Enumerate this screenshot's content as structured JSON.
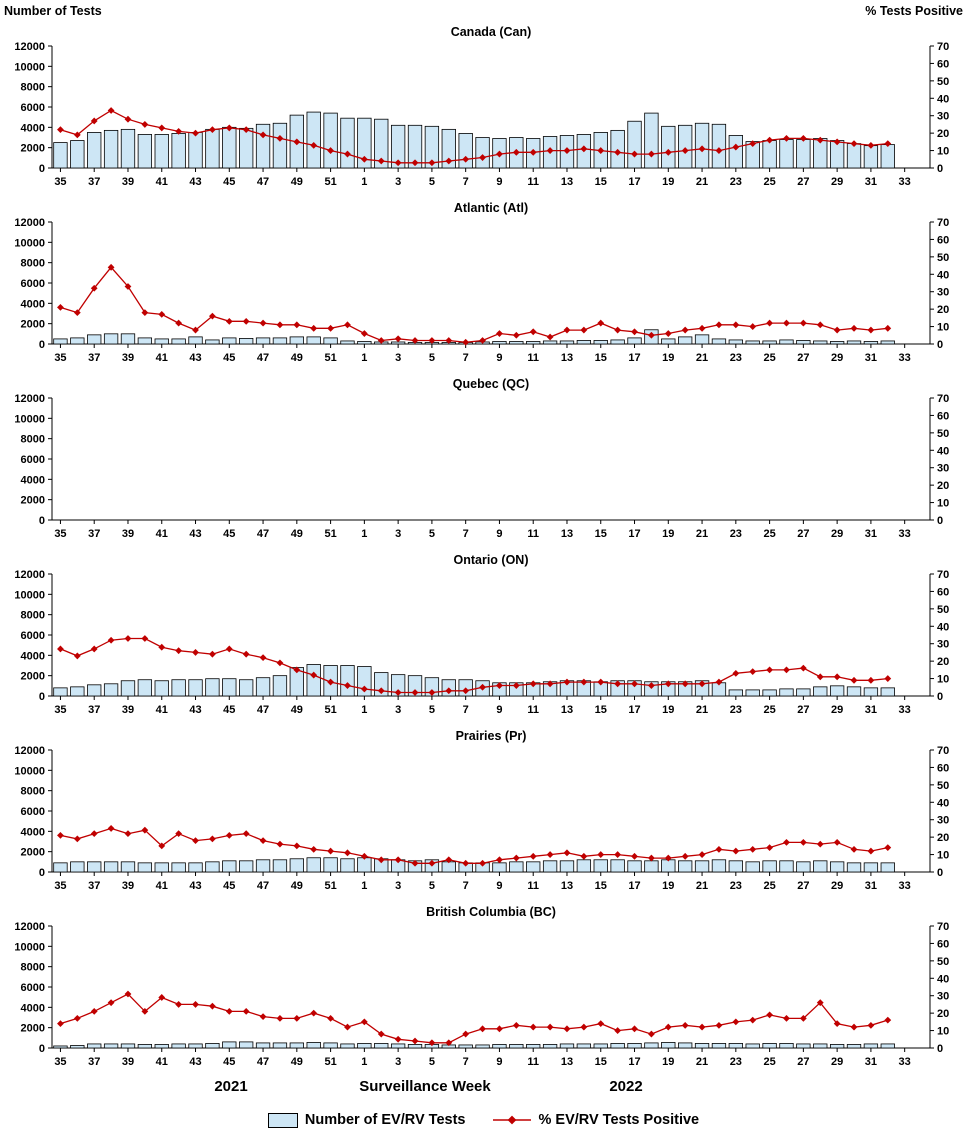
{
  "chart_data": {
    "type": "combo_bar_line_small_multiples",
    "left_axis": {
      "title": "Number of Tests",
      "min": 0,
      "max": 12000,
      "step": 2000
    },
    "right_axis": {
      "title": "% Tests Positive",
      "min": 0,
      "max": 70,
      "step": 10
    },
    "x_axis": {
      "year_left": "2021",
      "label": "Surveillance Week",
      "year_right": "2022"
    },
    "series_labels": {
      "bars": "Number of EV/RV Tests",
      "line": "% EV/RV Tests Positive"
    },
    "colors": {
      "bar_fill": "#CDE6F5",
      "bar_stroke": "#000000",
      "line": "#C00000"
    },
    "weeks": [
      "35",
      "36",
      "37",
      "38",
      "39",
      "40",
      "41",
      "42",
      "43",
      "44",
      "45",
      "46",
      "47",
      "48",
      "49",
      "50",
      "51",
      "52",
      "1",
      "2",
      "3",
      "4",
      "5",
      "6",
      "7",
      "8",
      "9",
      "10",
      "11",
      "12",
      "13",
      "14",
      "15",
      "16",
      "17",
      "18",
      "19",
      "20",
      "21",
      "22",
      "23",
      "24",
      "25",
      "26",
      "27",
      "28",
      "29",
      "30",
      "31",
      "32",
      "33"
    ],
    "x_tick_labels": [
      "35",
      "37",
      "39",
      "41",
      "43",
      "45",
      "47",
      "49",
      "51",
      "1",
      "3",
      "5",
      "7",
      "9",
      "11",
      "13",
      "15",
      "17",
      "19",
      "21",
      "23",
      "25",
      "27",
      "29",
      "31",
      "33"
    ],
    "panels": [
      {
        "id": "canada",
        "title": "Canada (Can)",
        "tests": [
          2500,
          2700,
          3500,
          3700,
          3800,
          3300,
          3300,
          3400,
          3500,
          3800,
          4000,
          3900,
          4300,
          4400,
          5200,
          5500,
          5400,
          4900,
          4900,
          4800,
          4200,
          4200,
          4100,
          3800,
          3400,
          3000,
          2900,
          3000,
          2900,
          3100,
          3200,
          3300,
          3500,
          3700,
          4600,
          5400,
          4100,
          4200,
          4400,
          4300,
          3200,
          2600,
          2700,
          2800,
          2800,
          2900,
          2700,
          2400,
          2200,
          2300,
          null
        ],
        "percent_positive": [
          22,
          19,
          27,
          33,
          28,
          25,
          23,
          21,
          20,
          22,
          23,
          22,
          19,
          17,
          15,
          13,
          10,
          8,
          5,
          4,
          3,
          3,
          3,
          4,
          5,
          6,
          8,
          9,
          9,
          10,
          10,
          11,
          10,
          9,
          8,
          8,
          9,
          10,
          11,
          10,
          12,
          14,
          16,
          17,
          17,
          16,
          15,
          14,
          13,
          14,
          null
        ]
      },
      {
        "id": "atlantic",
        "title": "Atlantic (Atl)",
        "tests": [
          500,
          600,
          900,
          1000,
          1000,
          600,
          500,
          500,
          700,
          400,
          600,
          550,
          600,
          600,
          700,
          700,
          600,
          300,
          250,
          200,
          200,
          150,
          150,
          150,
          150,
          200,
          250,
          250,
          250,
          300,
          300,
          350,
          350,
          400,
          600,
          1400,
          500,
          700,
          900,
          500,
          400,
          300,
          300,
          400,
          350,
          300,
          250,
          300,
          250,
          300,
          null
        ],
        "percent_positive": [
          21,
          18,
          32,
          44,
          33,
          18,
          17,
          12,
          8,
          16,
          13,
          13,
          12,
          11,
          11,
          9,
          9,
          11,
          6,
          2,
          3,
          2,
          2,
          2,
          1,
          2,
          6,
          5,
          7,
          4,
          8,
          8,
          12,
          8,
          7,
          5,
          6,
          8,
          9,
          11,
          11,
          10,
          12,
          12,
          12,
          11,
          8,
          9,
          8,
          9,
          null
        ]
      },
      {
        "id": "quebec",
        "title": "Quebec (QC)",
        "tests": [],
        "percent_positive": []
      },
      {
        "id": "ontario",
        "title": "Ontario (ON)",
        "tests": [
          800,
          900,
          1100,
          1200,
          1500,
          1600,
          1500,
          1600,
          1600,
          1700,
          1700,
          1600,
          1800,
          2000,
          2800,
          3100,
          3000,
          3000,
          2900,
          2300,
          2100,
          2000,
          1800,
          1600,
          1600,
          1500,
          1300,
          1300,
          1300,
          1400,
          1500,
          1500,
          1400,
          1500,
          1500,
          1400,
          1400,
          1400,
          1500,
          1300,
          600,
          600,
          600,
          700,
          700,
          900,
          1000,
          900,
          800,
          800,
          null
        ],
        "percent_positive": [
          27,
          23,
          27,
          32,
          33,
          33,
          28,
          26,
          25,
          24,
          27,
          24,
          22,
          19,
          15,
          12,
          8,
          6,
          4,
          3,
          2,
          2,
          2,
          3,
          3,
          5,
          6,
          6,
          7,
          7,
          8,
          8,
          8,
          7,
          7,
          6,
          7,
          7,
          7,
          8,
          13,
          14,
          15,
          15,
          16,
          11,
          11,
          9,
          9,
          10,
          null
        ]
      },
      {
        "id": "prairies",
        "title": "Prairies (Pr)",
        "tests": [
          900,
          1000,
          1000,
          1000,
          1000,
          900,
          900,
          900,
          900,
          1000,
          1100,
          1100,
          1200,
          1200,
          1300,
          1400,
          1400,
          1300,
          1400,
          1300,
          1200,
          1100,
          1200,
          1000,
          900,
          900,
          900,
          1000,
          1000,
          1100,
          1100,
          1200,
          1200,
          1200,
          1100,
          1100,
          1200,
          1100,
          1100,
          1200,
          1100,
          1000,
          1100,
          1100,
          1000,
          1100,
          1000,
          900,
          900,
          900,
          null
        ],
        "percent_positive": [
          21,
          19,
          22,
          25,
          22,
          24,
          15,
          22,
          18,
          19,
          21,
          22,
          18,
          16,
          15,
          13,
          12,
          11,
          9,
          7,
          7,
          5,
          5,
          7,
          5,
          5,
          7,
          8,
          9,
          10,
          11,
          9,
          10,
          10,
          9,
          8,
          8,
          9,
          10,
          13,
          12,
          13,
          14,
          17,
          17,
          16,
          17,
          13,
          12,
          14,
          null
        ]
      },
      {
        "id": "bc",
        "title": "British Columbia (BC)",
        "tests": [
          200,
          250,
          400,
          400,
          400,
          350,
          350,
          400,
          400,
          450,
          600,
          600,
          500,
          500,
          500,
          550,
          500,
          400,
          450,
          450,
          400,
          350,
          350,
          300,
          300,
          300,
          350,
          350,
          350,
          350,
          400,
          400,
          400,
          450,
          450,
          500,
          550,
          500,
          450,
          450,
          450,
          400,
          450,
          450,
          400,
          400,
          350,
          350,
          400,
          400,
          null
        ],
        "percent_positive": [
          14,
          17,
          21,
          26,
          31,
          21,
          29,
          25,
          25,
          24,
          21,
          21,
          18,
          17,
          17,
          20,
          17,
          12,
          15,
          8,
          5,
          4,
          3,
          3,
          8,
          11,
          11,
          13,
          12,
          12,
          11,
          12,
          14,
          10,
          11,
          8,
          12,
          13,
          12,
          13,
          15,
          16,
          19,
          17,
          17,
          26,
          14,
          12,
          13,
          16,
          null
        ]
      }
    ]
  }
}
